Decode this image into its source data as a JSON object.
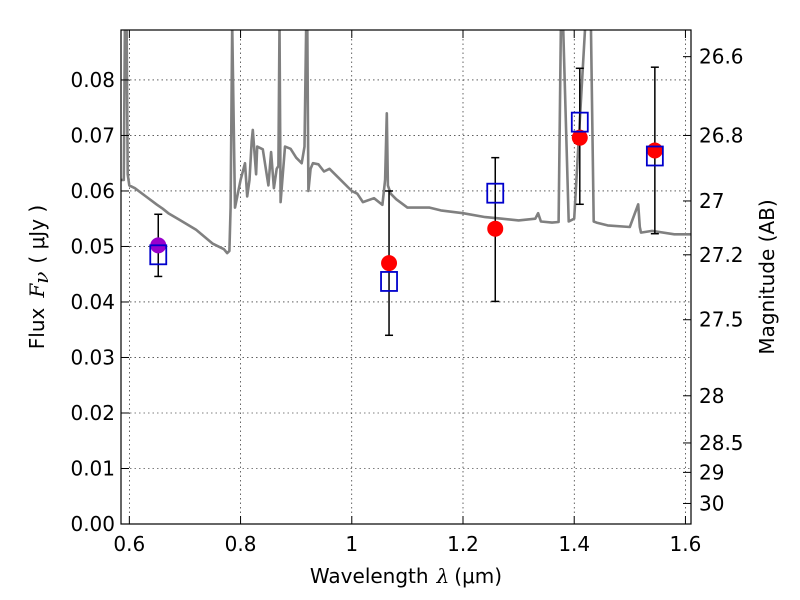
{
  "chart_data": {
    "type": "scatter",
    "title": "",
    "xlabel": "Wavelength  λ (μm)",
    "ylabel": "Flux  F_ν  ( μJy )",
    "ylabel_parts": {
      "prefix": "Flux",
      "symbol": "F",
      "subscript": "ν",
      "unit": "( μJy )"
    },
    "xlabel_parts": {
      "prefix": "Wavelength",
      "symbol": "λ",
      "unit": "(μm)"
    },
    "right_ylabel": "Magnitude (AB)",
    "xlim": [
      0.585,
      1.61
    ],
    "ylim": [
      0.0,
      0.089
    ],
    "grid": true,
    "x_ticks": [
      0.6,
      0.8,
      1.0,
      1.2,
      1.4,
      1.6
    ],
    "x_tick_labels": [
      "0.6",
      "0.8",
      "1",
      "1.2",
      "1.4",
      "1.6"
    ],
    "y_ticks": [
      0.0,
      0.01,
      0.02,
      0.03,
      0.04,
      0.05,
      0.06,
      0.07,
      0.08
    ],
    "y_tick_labels": [
      "0.00",
      "0.01",
      "0.02",
      "0.03",
      "0.04",
      "0.05",
      "0.06",
      "0.07",
      "0.08"
    ],
    "right_ticks": [
      {
        "label": "26.6",
        "flux": 0.0842
      },
      {
        "label": "26.8",
        "flux": 0.07
      },
      {
        "label": "27",
        "flux": 0.0582
      },
      {
        "label": "27.2",
        "flux": 0.0485
      },
      {
        "label": "27.5",
        "flux": 0.0368
      },
      {
        "label": "28",
        "flux": 0.0231
      },
      {
        "label": "28.5",
        "flux": 0.0146
      },
      {
        "label": "29",
        "flux": 0.0093
      },
      {
        "label": "30",
        "flux": 0.0037
      }
    ],
    "colors": {
      "model": "#808080",
      "observed": "#ff0000",
      "observed_first": "#9900cc",
      "model_box": "#0000cc",
      "errorbar": "#000000"
    },
    "series": [
      {
        "kind": "line",
        "x": [
          0.585,
          0.59,
          0.592,
          0.595,
          0.597,
          0.6,
          0.61,
          0.63,
          0.65,
          0.66,
          0.67,
          0.69,
          0.72,
          0.75,
          0.77,
          0.776,
          0.78,
          0.782,
          0.785,
          0.79,
          0.8,
          0.808,
          0.812,
          0.816,
          0.82,
          0.822,
          0.828,
          0.83,
          0.84,
          0.85,
          0.855,
          0.86,
          0.865,
          0.868,
          0.87,
          0.872,
          0.88,
          0.89,
          0.9,
          0.91,
          0.915,
          0.918,
          0.92,
          0.922,
          0.926,
          0.93,
          0.94,
          0.95,
          0.96,
          0.98,
          1.0,
          1.01,
          1.02,
          1.04,
          1.055,
          1.06,
          1.063,
          1.065,
          1.07,
          1.08,
          1.1,
          1.14,
          1.16,
          1.2,
          1.24,
          1.27,
          1.3,
          1.33,
          1.335,
          1.34,
          1.36,
          1.372,
          1.376,
          1.38,
          1.39,
          1.4,
          1.42,
          1.43,
          1.435,
          1.44,
          1.46,
          1.5,
          1.515,
          1.518,
          1.52,
          1.54,
          1.58,
          1.61
        ],
        "y": [
          0.062,
          0.062,
          0.09,
          0.09,
          0.063,
          0.061,
          0.0605,
          0.059,
          0.0575,
          0.0568,
          0.056,
          0.0548,
          0.053,
          0.0505,
          0.0495,
          0.0488,
          0.0492,
          0.057,
          0.09,
          0.057,
          0.062,
          0.065,
          0.059,
          0.062,
          0.069,
          0.071,
          0.063,
          0.068,
          0.0675,
          0.061,
          0.067,
          0.0605,
          0.064,
          0.0645,
          0.09,
          0.058,
          0.068,
          0.0676,
          0.066,
          0.065,
          0.068,
          0.09,
          0.09,
          0.06,
          0.064,
          0.065,
          0.0648,
          0.0635,
          0.064,
          0.062,
          0.06,
          0.0595,
          0.058,
          0.0587,
          0.0575,
          0.062,
          0.074,
          0.061,
          0.0595,
          0.0585,
          0.057,
          0.057,
          0.0565,
          0.056,
          0.0553,
          0.055,
          0.0547,
          0.055,
          0.056,
          0.0545,
          0.0543,
          0.0544,
          0.09,
          0.09,
          0.0545,
          0.055,
          0.09,
          0.09,
          0.0545,
          0.0543,
          0.0538,
          0.0535,
          0.0576,
          0.0535,
          0.0525,
          0.0528,
          0.0522,
          0.0522
        ]
      },
      {
        "kind": "model_points",
        "marker": "open-square",
        "x": [
          0.652,
          1.067,
          1.258,
          1.41,
          1.545
        ],
        "y": [
          0.0485,
          0.0437,
          0.0596,
          0.0724,
          0.0663
        ]
      },
      {
        "kind": "observed_points",
        "marker": "filled-circle",
        "x": [
          0.652,
          1.067,
          1.258,
          1.41,
          1.545
        ],
        "y": [
          0.0502,
          0.047,
          0.0532,
          0.0696,
          0.0673
        ],
        "yerr_low": [
          0.0056,
          0.013,
          0.0131,
          0.012,
          0.015
        ],
        "yerr_high": [
          0.0056,
          0.013,
          0.0128,
          0.0125,
          0.015
        ]
      }
    ]
  }
}
